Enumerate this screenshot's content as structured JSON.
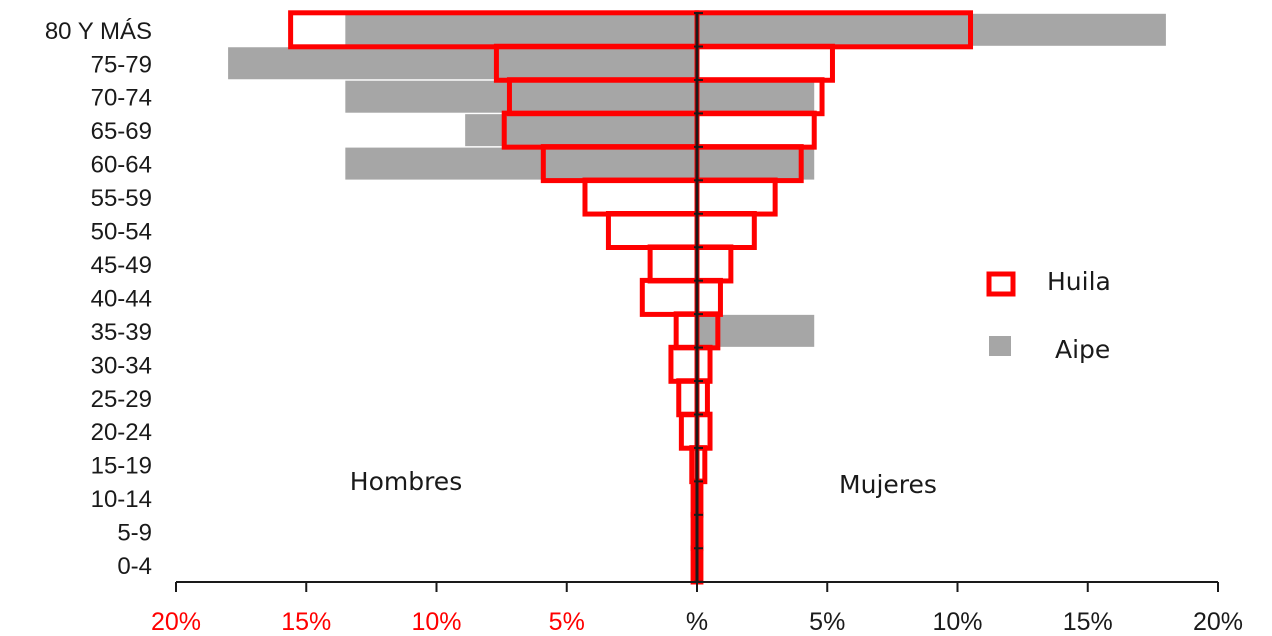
{
  "chart_data": {
    "type": "bar",
    "subtype": "population-pyramid",
    "categories": [
      "0-4",
      "5-9",
      "10-14",
      "15-19",
      "20-24",
      "25-29",
      "30-34",
      "35-39",
      "40-44",
      "45-49",
      "50-54",
      "55-59",
      "60-64",
      "65-69",
      "70-74",
      "75-79",
      "80 Y MÁS"
    ],
    "series": [
      {
        "name": "Huila",
        "style": "outline",
        "color": "#ff0000",
        "hombres": [
          0.15,
          0.15,
          0.15,
          0.2,
          0.6,
          0.7,
          1.0,
          0.8,
          2.1,
          1.8,
          3.4,
          4.3,
          5.9,
          7.4,
          7.2,
          7.7,
          15.6
        ],
        "mujeres": [
          0.15,
          0.15,
          0.15,
          0.3,
          0.5,
          0.4,
          0.5,
          0.8,
          0.9,
          1.3,
          2.2,
          3.0,
          4.0,
          4.5,
          4.8,
          5.2,
          10.5
        ]
      },
      {
        "name": "Aipe",
        "style": "filled",
        "color": "#a6a6a6",
        "hombres": [
          0,
          0,
          0,
          0,
          0,
          0,
          0,
          0,
          0,
          0,
          0,
          0,
          13.5,
          8.9,
          13.5,
          18.0,
          13.5
        ],
        "mujeres": [
          0,
          0,
          0,
          0,
          0,
          0,
          0,
          4.5,
          0,
          0,
          0,
          0,
          4.5,
          0,
          4.5,
          0,
          18.0
        ]
      }
    ],
    "xlim": [
      -20,
      20
    ],
    "x_ticks": [
      {
        "value": -20,
        "label": "20%"
      },
      {
        "value": -15,
        "label": "15%"
      },
      {
        "value": -10,
        "label": "10%"
      },
      {
        "value": -5,
        "label": "5%"
      },
      {
        "value": 0,
        "label": "%"
      },
      {
        "value": 5,
        "label": "5%"
      },
      {
        "value": 10,
        "label": "10%"
      },
      {
        "value": 15,
        "label": "15%"
      },
      {
        "value": 20,
        "label": "20%"
      }
    ],
    "negative_tick_color": "#ff0000",
    "positive_tick_color": "#1a1a1a",
    "left_side_label": "Hombres",
    "right_side_label": "Mujeres",
    "legend": [
      {
        "name": "Huila",
        "style": "outline",
        "color": "#ff0000"
      },
      {
        "name": "Aipe",
        "style": "filled",
        "color": "#a6a6a6"
      }
    ],
    "legend_position": "right"
  }
}
